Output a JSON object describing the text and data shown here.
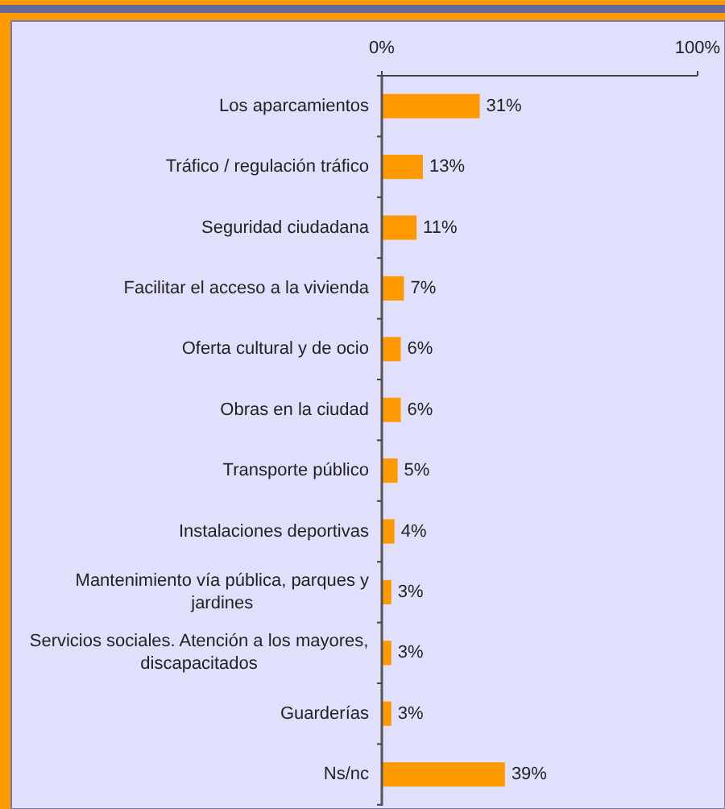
{
  "chart_data": {
    "type": "bar",
    "orientation": "horizontal",
    "categories": [
      "Los aparcamientos",
      "Tráfico / regulación tráfico",
      "Seguridad ciudadana",
      "Facilitar el acceso a la vivienda",
      "Oferta cultural y de ocio",
      "Obras en la ciudad",
      "Transporte público",
      "Instalaciones deportivas",
      "Mantenimiento vía pública, parques y jardines",
      "Servicios sociales. Atención a los mayores, discapacitados",
      "Guarderías",
      "Ns/nc"
    ],
    "values": [
      31,
      13,
      11,
      7,
      6,
      6,
      5,
      4,
      3,
      3,
      3,
      39
    ],
    "value_labels": [
      "31%",
      "13%",
      "11%",
      "7%",
      "6%",
      "6%",
      "5%",
      "4%",
      "3%",
      "3%",
      "3%",
      "39%"
    ],
    "color": "#ff9900",
    "xlim": [
      0,
      100
    ],
    "xticks": [
      {
        "value": 0,
        "label": "0%"
      },
      {
        "value": 100,
        "label": "100%"
      }
    ],
    "grid": false
  }
}
